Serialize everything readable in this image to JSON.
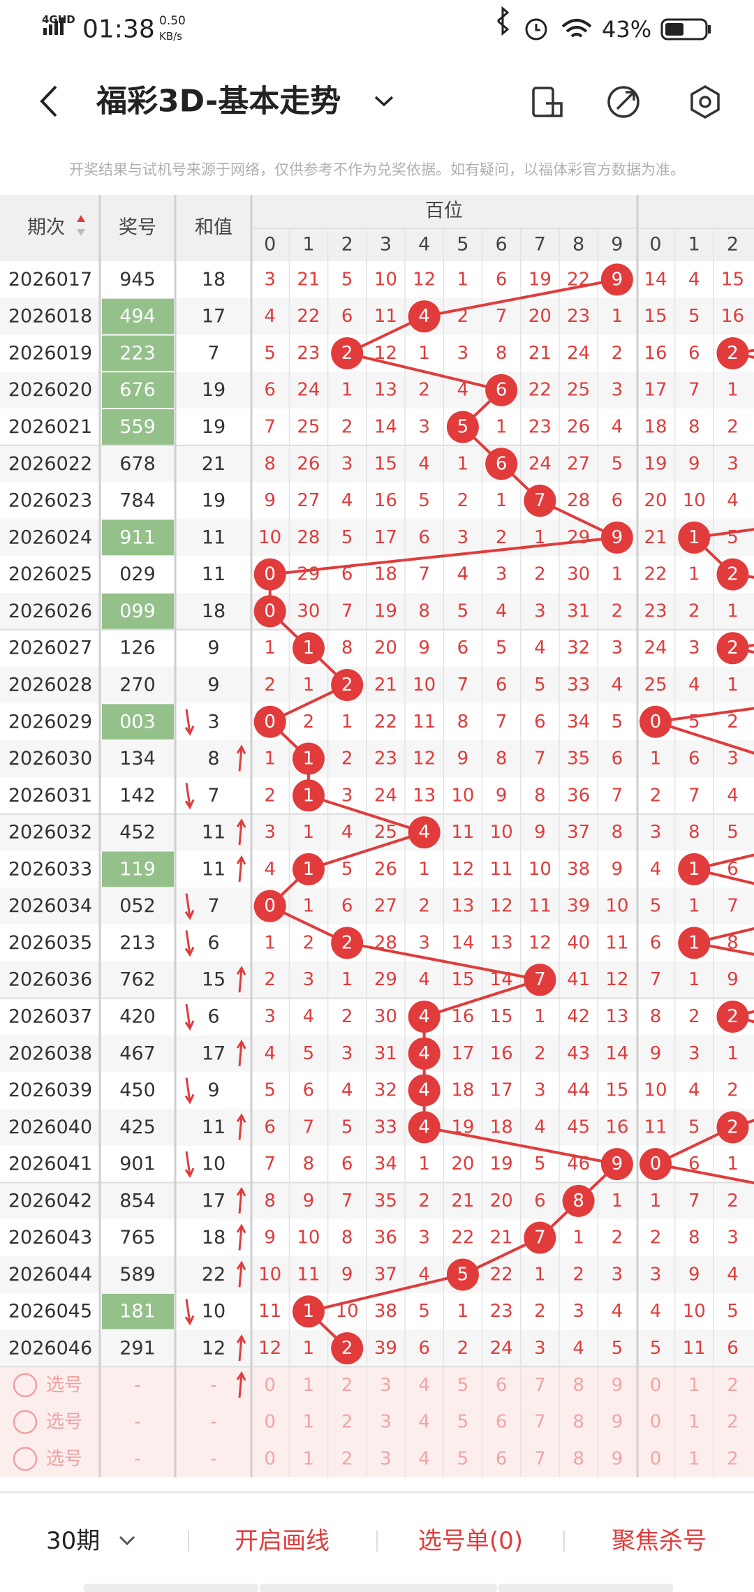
{
  "status": {
    "carrier": "4GHD",
    "time": "01:38",
    "speed": "0.50",
    "speed_unit": "KB/s",
    "battery": "43%"
  },
  "header": {
    "title": "福彩3D-基本走势"
  },
  "notice": "开奖结果与试机号来源于网络，仅供参考不作为兑奖依据。如有疑问，以福体彩官方数据为准。",
  "table": {
    "columns": {
      "period": "期次",
      "number": "奖号",
      "sum": "和值",
      "hundreds": "百位",
      "hundreds_digits": [
        0,
        1,
        2,
        3,
        4,
        5,
        6,
        7,
        8,
        9
      ],
      "tens_digits": [
        0,
        1,
        2
      ]
    },
    "rows": [
      {
        "period": "2026017",
        "number": "945",
        "sum": 18,
        "highlight": false,
        "trend": null,
        "hundreds": [
          3,
          21,
          5,
          10,
          12,
          1,
          6,
          19,
          22,
          9
        ],
        "tens": [
          14,
          4,
          15
        ]
      },
      {
        "period": "2026018",
        "number": "494",
        "sum": 17,
        "highlight": true,
        "trend": null,
        "hundreds": [
          4,
          22,
          6,
          11,
          4,
          2,
          7,
          20,
          23,
          1
        ],
        "tens": [
          15,
          5,
          16
        ]
      },
      {
        "period": "2026019",
        "number": "223",
        "sum": 7,
        "highlight": true,
        "trend": null,
        "hundreds": [
          5,
          23,
          2,
          12,
          1,
          3,
          8,
          21,
          24,
          2
        ],
        "tens": [
          16,
          6,
          2
        ]
      },
      {
        "period": "2026020",
        "number": "676",
        "sum": 19,
        "highlight": true,
        "trend": null,
        "hundreds": [
          6,
          24,
          1,
          13,
          2,
          4,
          6,
          22,
          25,
          3
        ],
        "tens": [
          17,
          7,
          1
        ]
      },
      {
        "period": "2026021",
        "number": "559",
        "sum": 19,
        "highlight": true,
        "trend": null,
        "hundreds": [
          7,
          25,
          2,
          14,
          3,
          5,
          1,
          23,
          26,
          4
        ],
        "tens": [
          18,
          8,
          2
        ]
      },
      {
        "period": "2026022",
        "number": "678",
        "sum": 21,
        "highlight": false,
        "trend": null,
        "hundreds": [
          8,
          26,
          3,
          15,
          4,
          1,
          6,
          24,
          27,
          5
        ],
        "tens": [
          19,
          9,
          3
        ]
      },
      {
        "period": "2026023",
        "number": "784",
        "sum": 19,
        "highlight": false,
        "trend": null,
        "hundreds": [
          9,
          27,
          4,
          16,
          5,
          2,
          1,
          7,
          28,
          6
        ],
        "tens": [
          20,
          10,
          4
        ]
      },
      {
        "period": "2026024",
        "number": "911",
        "sum": 11,
        "highlight": true,
        "trend": null,
        "hundreds": [
          10,
          28,
          5,
          17,
          6,
          3,
          2,
          1,
          29,
          9
        ],
        "tens": [
          21,
          1,
          5
        ]
      },
      {
        "period": "2026025",
        "number": "029",
        "sum": 11,
        "highlight": false,
        "trend": null,
        "hundreds": [
          0,
          29,
          6,
          18,
          7,
          4,
          3,
          2,
          30,
          1
        ],
        "tens": [
          22,
          1,
          2
        ]
      },
      {
        "period": "2026026",
        "number": "099",
        "sum": 18,
        "highlight": true,
        "trend": null,
        "hundreds": [
          0,
          30,
          7,
          19,
          8,
          5,
          4,
          3,
          31,
          2
        ],
        "tens": [
          23,
          2,
          1
        ]
      },
      {
        "period": "2026027",
        "number": "126",
        "sum": 9,
        "highlight": false,
        "trend": null,
        "hundreds": [
          1,
          1,
          8,
          20,
          9,
          6,
          5,
          4,
          32,
          3
        ],
        "tens": [
          24,
          3,
          2
        ]
      },
      {
        "period": "2026028",
        "number": "270",
        "sum": 9,
        "highlight": false,
        "trend": null,
        "hundreds": [
          2,
          1,
          2,
          21,
          10,
          7,
          6,
          5,
          33,
          4
        ],
        "tens": [
          25,
          4,
          1
        ]
      },
      {
        "period": "2026029",
        "number": "003",
        "sum": 3,
        "highlight": true,
        "trend": "down",
        "hundreds": [
          0,
          2,
          1,
          22,
          11,
          8,
          7,
          6,
          34,
          5
        ],
        "tens": [
          0,
          5,
          2
        ]
      },
      {
        "period": "2026030",
        "number": "134",
        "sum": 8,
        "highlight": false,
        "trend": "up",
        "hundreds": [
          1,
          1,
          2,
          23,
          12,
          9,
          8,
          7,
          35,
          6
        ],
        "tens": [
          1,
          6,
          3
        ]
      },
      {
        "period": "2026031",
        "number": "142",
        "sum": 7,
        "highlight": false,
        "trend": "down",
        "hundreds": [
          2,
          1,
          3,
          24,
          13,
          10,
          9,
          8,
          36,
          7
        ],
        "tens": [
          2,
          7,
          4
        ]
      },
      {
        "period": "2026032",
        "number": "452",
        "sum": 11,
        "highlight": false,
        "trend": "up",
        "hundreds": [
          3,
          1,
          4,
          25,
          4,
          11,
          10,
          9,
          37,
          8
        ],
        "tens": [
          3,
          8,
          5
        ]
      },
      {
        "period": "2026033",
        "number": "119",
        "sum": 11,
        "highlight": true,
        "trend": "up",
        "hundreds": [
          4,
          1,
          5,
          26,
          1,
          12,
          11,
          10,
          38,
          9
        ],
        "tens": [
          4,
          1,
          6
        ]
      },
      {
        "period": "2026034",
        "number": "052",
        "sum": 7,
        "highlight": false,
        "trend": "down",
        "hundreds": [
          0,
          1,
          6,
          27,
          2,
          13,
          12,
          11,
          39,
          10
        ],
        "tens": [
          5,
          1,
          7
        ]
      },
      {
        "period": "2026035",
        "number": "213",
        "sum": 6,
        "highlight": false,
        "trend": "down",
        "hundreds": [
          1,
          2,
          2,
          28,
          3,
          14,
          13,
          12,
          40,
          11
        ],
        "tens": [
          6,
          1,
          8
        ]
      },
      {
        "period": "2026036",
        "number": "762",
        "sum": 15,
        "highlight": false,
        "trend": "up",
        "hundreds": [
          2,
          3,
          1,
          29,
          4,
          15,
          14,
          7,
          41,
          12
        ],
        "tens": [
          7,
          1,
          9
        ]
      },
      {
        "period": "2026037",
        "number": "420",
        "sum": 6,
        "highlight": false,
        "trend": "down",
        "hundreds": [
          3,
          4,
          2,
          30,
          4,
          16,
          15,
          1,
          42,
          13
        ],
        "tens": [
          8,
          2,
          2
        ]
      },
      {
        "period": "2026038",
        "number": "467",
        "sum": 17,
        "highlight": false,
        "trend": "up",
        "hundreds": [
          4,
          5,
          3,
          31,
          4,
          17,
          16,
          2,
          43,
          14
        ],
        "tens": [
          9,
          3,
          1
        ]
      },
      {
        "period": "2026039",
        "number": "450",
        "sum": 9,
        "highlight": false,
        "trend": "down",
        "hundreds": [
          5,
          6,
          4,
          32,
          4,
          18,
          17,
          3,
          44,
          15
        ],
        "tens": [
          10,
          4,
          2
        ]
      },
      {
        "period": "2026040",
        "number": "425",
        "sum": 11,
        "highlight": false,
        "trend": "up",
        "hundreds": [
          6,
          7,
          5,
          33,
          4,
          19,
          18,
          4,
          45,
          16
        ],
        "tens": [
          11,
          5,
          2
        ]
      },
      {
        "period": "2026041",
        "number": "901",
        "sum": 10,
        "highlight": false,
        "trend": "down",
        "hundreds": [
          7,
          8,
          6,
          34,
          1,
          20,
          19,
          5,
          46,
          9
        ],
        "tens": [
          0,
          6,
          1
        ]
      },
      {
        "period": "2026042",
        "number": "854",
        "sum": 17,
        "highlight": false,
        "trend": "up",
        "hundreds": [
          8,
          9,
          7,
          35,
          2,
          21,
          20,
          6,
          8,
          1
        ],
        "tens": [
          1,
          7,
          2
        ]
      },
      {
        "period": "2026043",
        "number": "765",
        "sum": 18,
        "highlight": false,
        "trend": "up",
        "hundreds": [
          9,
          10,
          8,
          36,
          3,
          22,
          21,
          7,
          1,
          2
        ],
        "tens": [
          2,
          8,
          3
        ]
      },
      {
        "period": "2026044",
        "number": "589",
        "sum": 22,
        "highlight": false,
        "trend": "up",
        "hundreds": [
          10,
          11,
          9,
          37,
          4,
          5,
          22,
          1,
          2,
          3
        ],
        "tens": [
          3,
          9,
          4
        ]
      },
      {
        "period": "2026045",
        "number": "181",
        "sum": 10,
        "highlight": true,
        "trend": "down",
        "hundreds": [
          11,
          1,
          10,
          38,
          5,
          1,
          23,
          2,
          3,
          4
        ],
        "tens": [
          4,
          10,
          5
        ]
      },
      {
        "period": "2026046",
        "number": "291",
        "sum": 12,
        "highlight": false,
        "trend": "up",
        "hundreds": [
          12,
          1,
          2,
          39,
          6,
          2,
          24,
          3,
          4,
          5
        ],
        "tens": [
          5,
          11,
          6
        ]
      }
    ],
    "pick_rows": [
      {
        "label": "选号",
        "number": "-",
        "sum": "-",
        "trend": "up",
        "hundreds": [
          0,
          1,
          2,
          3,
          4,
          5,
          6,
          7,
          8,
          9
        ],
        "tens": [
          0,
          1,
          2
        ]
      },
      {
        "label": "选号",
        "number": "-",
        "sum": "-",
        "trend": null,
        "hundreds": [
          0,
          1,
          2,
          3,
          4,
          5,
          6,
          7,
          8,
          9
        ],
        "tens": [
          0,
          1,
          2
        ]
      },
      {
        "label": "选号",
        "number": "-",
        "sum": "-",
        "trend": null,
        "hundreds": [
          0,
          1,
          2,
          3,
          4,
          5,
          6,
          7,
          8,
          9
        ],
        "tens": [
          0,
          1,
          2
        ]
      }
    ]
  },
  "footer": {
    "periods": "30期",
    "draw_lines": "开启画线",
    "pick_list": "选号单(0)",
    "focus": "聚焦杀号"
  }
}
